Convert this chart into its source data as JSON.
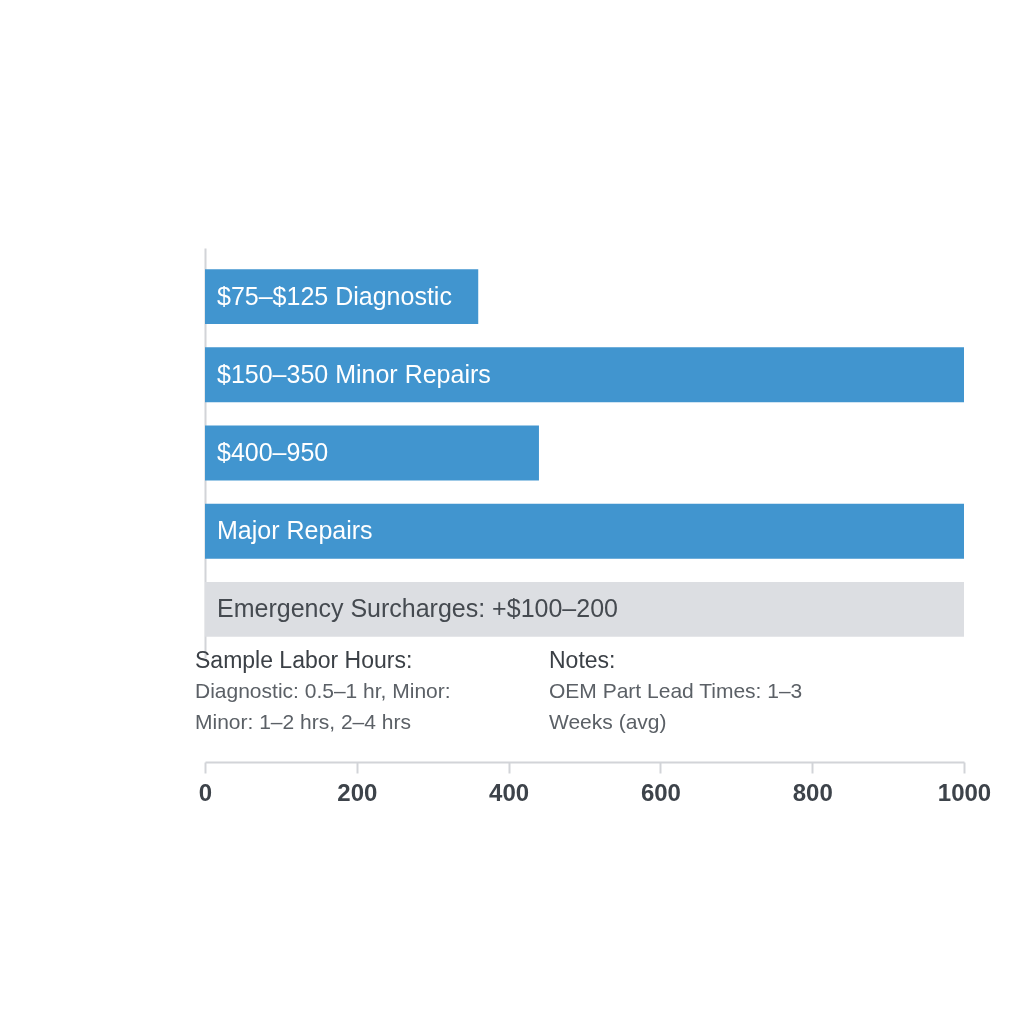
{
  "chart_data": {
    "type": "bar",
    "orientation": "horizontal",
    "categories": [
      "$75–$125 Diagnostic",
      "$150–350 Minor Repairs",
      "$400–950",
      "Major Repairs",
      "Emergency Surcharges: +$100–200"
    ],
    "values": [
      360,
      1000,
      440,
      1000,
      1000
    ],
    "colors": [
      "#4195cf",
      "#4195cf",
      "#4195cf",
      "#4195cf",
      "#dcdee2"
    ],
    "xlim": [
      0,
      1000
    ],
    "xticks": [
      0,
      200,
      400,
      600,
      800,
      1000
    ],
    "annotations": [
      "Sample Labor Hours:",
      "Diagnostic: 0.5–1 hr, Minor:",
      "Minor: 1–2 hrs, 2–4 hrs",
      "Notes:",
      "OEM Part Lead Times: 1–3",
      "Weeks (avg)"
    ]
  }
}
